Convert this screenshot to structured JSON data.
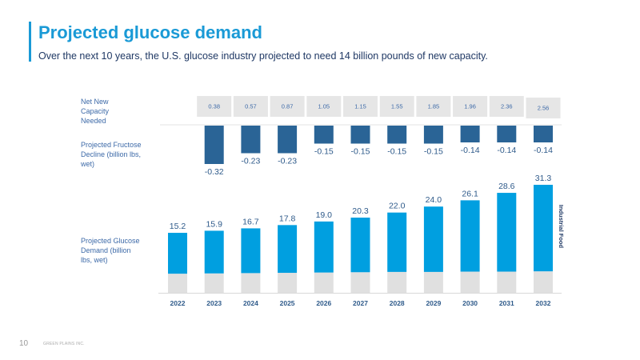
{
  "header": {
    "title": "Projected glucose demand",
    "subtitle": "Over the next 10 years, the U.S. glucose industry projected to need 14 billion pounds of new capacity."
  },
  "row_labels": {
    "capacity": [
      "Net New",
      "Capacity",
      "Needed"
    ],
    "fructose": [
      "Projected Fructose",
      "Decline (billion lbs,",
      "wet)"
    ],
    "glucose": [
      "Projected Glucose",
      "Demand (billion",
      "lbs, wet)"
    ]
  },
  "footer": {
    "page_number": "10",
    "company": "GREEN PLAINS INC."
  },
  "colors": {
    "title_blue": "#1a9ad6",
    "navy": "#1f3864",
    "glucose_food": "#009fe0",
    "glucose_industrial": "#e0e0e0",
    "fructose": "#2a6496",
    "capacity_box": "#e6e6e6"
  },
  "chart_data": [
    {
      "type": "table",
      "title": "Net New Capacity Needed",
      "categories": [
        "2023",
        "2024",
        "2025",
        "2026",
        "2027",
        "2028",
        "2029",
        "2030",
        "2031",
        "2032"
      ],
      "values": [
        "0.38",
        "0.57",
        "0.87",
        "1.05",
        "1.15",
        "1.55",
        "1.85",
        "1.96",
        "2.36",
        "2.56"
      ]
    },
    {
      "type": "bar",
      "title": "Projected Fructose Decline (billion lbs, wet)",
      "categories": [
        "2023",
        "2024",
        "2025",
        "2026",
        "2027",
        "2028",
        "2029",
        "2030",
        "2031",
        "2032"
      ],
      "values": [
        -0.32,
        -0.23,
        -0.23,
        -0.15,
        -0.15,
        -0.15,
        -0.15,
        -0.14,
        -0.14,
        -0.14
      ],
      "labels": [
        "-0.32",
        "-0.23",
        "-0.23",
        "-0.15",
        "-0.15",
        "-0.15",
        "-0.15",
        "-0.14",
        "-0.14",
        "-0.14"
      ],
      "ylim": [
        -0.35,
        0
      ]
    },
    {
      "type": "bar",
      "stacked": true,
      "title": "Projected Glucose Demand (billion lbs, wet)",
      "xlabel": "",
      "ylabel": "",
      "categories": [
        "2022",
        "2023",
        "2024",
        "2025",
        "2026",
        "2027",
        "2028",
        "2029",
        "2030",
        "2031",
        "2032"
      ],
      "totals": [
        15.2,
        15.9,
        16.7,
        17.8,
        19.0,
        20.3,
        22.0,
        24.0,
        26.1,
        28.6,
        31.3
      ],
      "total_labels": [
        "15.2",
        "15.9",
        "16.7",
        "17.8",
        "19.0",
        "20.3",
        "22.0",
        "24.0",
        "26.1",
        "28.6",
        "31.3"
      ],
      "series": [
        {
          "name": "Industrial",
          "values": [
            6.4,
            6.5,
            6.6,
            6.7,
            6.8,
            6.9,
            7.0,
            7.0,
            7.1,
            7.1,
            7.2
          ]
        },
        {
          "name": "Food",
          "values": [
            8.8,
            9.4,
            10.1,
            11.1,
            12.2,
            13.4,
            15.0,
            17.0,
            19.0,
            21.5,
            24.1
          ]
        }
      ],
      "series_labels": [
        "Industrial",
        "Food"
      ],
      "ylim": [
        -4.9,
        31.3
      ],
      "grid": false,
      "legend": "right (rotated)"
    }
  ]
}
